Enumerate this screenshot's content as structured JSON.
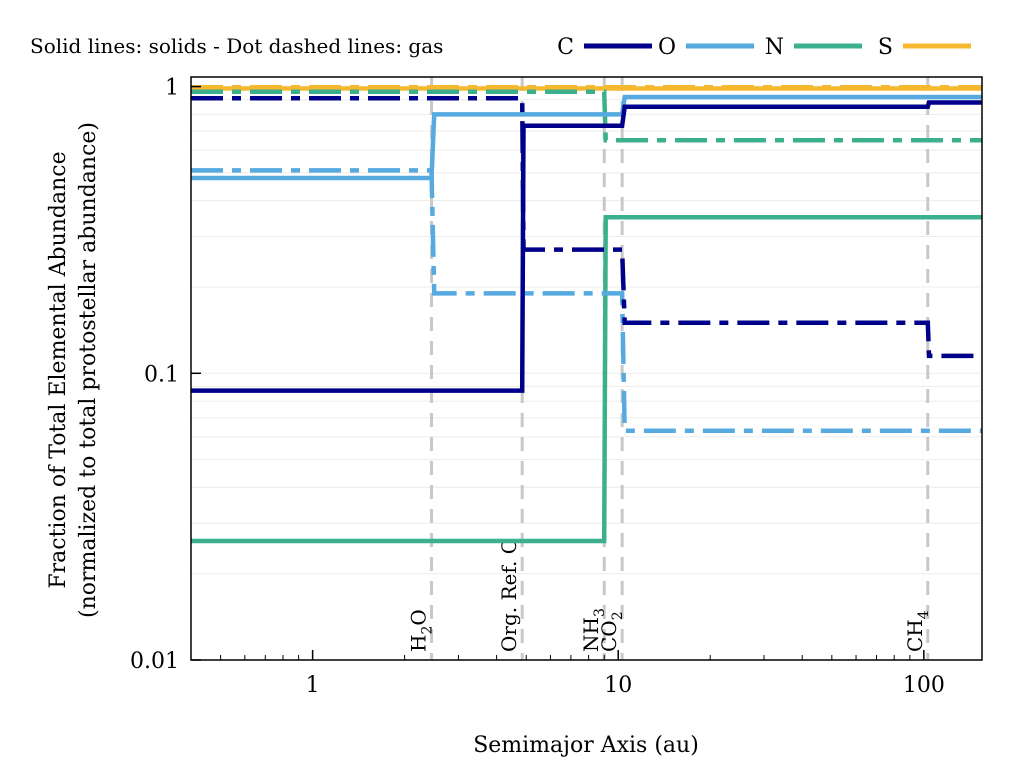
{
  "chart_data": {
    "type": "line",
    "title": "",
    "note": "Solid lines: solids - Dot dashed lines: gas",
    "xlabel": "Semimajor Axis (au)",
    "ylabel": "Fraction of Total Elemental Abundance",
    "ylabel2": "(normalized to total protostellar abundance)",
    "xscale": "log",
    "yscale": "log",
    "xlim": [
      0.4,
      155
    ],
    "ylim": [
      0.01,
      1.08
    ],
    "xticks": [
      {
        "value": 1,
        "label": "1"
      },
      {
        "value": 10,
        "label": "10"
      },
      {
        "value": 100,
        "label": "100"
      }
    ],
    "yticks": [
      {
        "value": 0.01,
        "label": "0.01"
      },
      {
        "value": 0.1,
        "label": "0.1"
      },
      {
        "value": 1,
        "label": "1"
      }
    ],
    "grid": "horizontal",
    "legend_position": "top-right",
    "legend": [
      {
        "name": "C",
        "color": "#00008b"
      },
      {
        "name": "O",
        "color": "#56aae0"
      },
      {
        "name": "N",
        "color": "#3cb08c"
      },
      {
        "name": "S",
        "color": "#f5b82e"
      }
    ],
    "snowlines": [
      {
        "label": "H2O",
        "main": "H",
        "sub": "2",
        "tail": "O",
        "x": 2.45
      },
      {
        "label": "Org. Ref. C",
        "main": "Org. Ref. C",
        "sub": "",
        "tail": "",
        "x": 4.85
      },
      {
        "label": "NH3",
        "main": "NH",
        "sub": "3",
        "tail": "",
        "x": 9.0
      },
      {
        "label": "CO2",
        "main": "CO",
        "sub": "2",
        "tail": "",
        "x": 10.3
      },
      {
        "label": "CH4",
        "main": "CH",
        "sub": "4",
        "tail": "",
        "x": 103
      }
    ],
    "series": [
      {
        "element": "C",
        "phase": "solid",
        "color": "#00008b",
        "points": [
          [
            0.4,
            0.087
          ],
          [
            4.85,
            0.087
          ],
          [
            4.9,
            0.73
          ],
          [
            10.3,
            0.73
          ],
          [
            10.5,
            0.85
          ],
          [
            103,
            0.85
          ],
          [
            104,
            0.88
          ],
          [
            155,
            0.88
          ]
        ]
      },
      {
        "element": "C",
        "phase": "gas",
        "color": "#00008b",
        "points": [
          [
            0.4,
            0.91
          ],
          [
            4.85,
            0.91
          ],
          [
            4.9,
            0.27
          ],
          [
            10.3,
            0.27
          ],
          [
            10.5,
            0.15
          ],
          [
            103,
            0.15
          ],
          [
            104,
            0.115
          ],
          [
            155,
            0.115
          ]
        ]
      },
      {
        "element": "O",
        "phase": "solid",
        "color": "#56aae0",
        "points": [
          [
            0.4,
            0.48
          ],
          [
            2.45,
            0.48
          ],
          [
            2.5,
            0.8
          ],
          [
            10.3,
            0.8
          ],
          [
            10.5,
            0.92
          ],
          [
            155,
            0.92
          ]
        ]
      },
      {
        "element": "O",
        "phase": "gas",
        "color": "#56aae0",
        "points": [
          [
            0.4,
            0.51
          ],
          [
            2.45,
            0.51
          ],
          [
            2.5,
            0.19
          ],
          [
            10.3,
            0.19
          ],
          [
            10.5,
            0.063
          ],
          [
            155,
            0.063
          ]
        ]
      },
      {
        "element": "N",
        "phase": "solid",
        "color": "#3cb08c",
        "points": [
          [
            0.4,
            0.026
          ],
          [
            9.0,
            0.026
          ],
          [
            9.1,
            0.35
          ],
          [
            155,
            0.35
          ]
        ]
      },
      {
        "element": "N",
        "phase": "gas",
        "color": "#3cb08c",
        "points": [
          [
            0.4,
            0.96
          ],
          [
            9.0,
            0.96
          ],
          [
            9.1,
            0.65
          ],
          [
            155,
            0.65
          ]
        ]
      },
      {
        "element": "S",
        "phase": "solid",
        "color": "#f5b82e",
        "points": [
          [
            0.4,
            0.985
          ],
          [
            155,
            0.985
          ]
        ]
      },
      {
        "element": "S",
        "phase": "gas",
        "color": "#f5b82e",
        "points": [
          [
            0.4,
            0.995
          ],
          [
            155,
            0.995
          ]
        ]
      }
    ]
  }
}
